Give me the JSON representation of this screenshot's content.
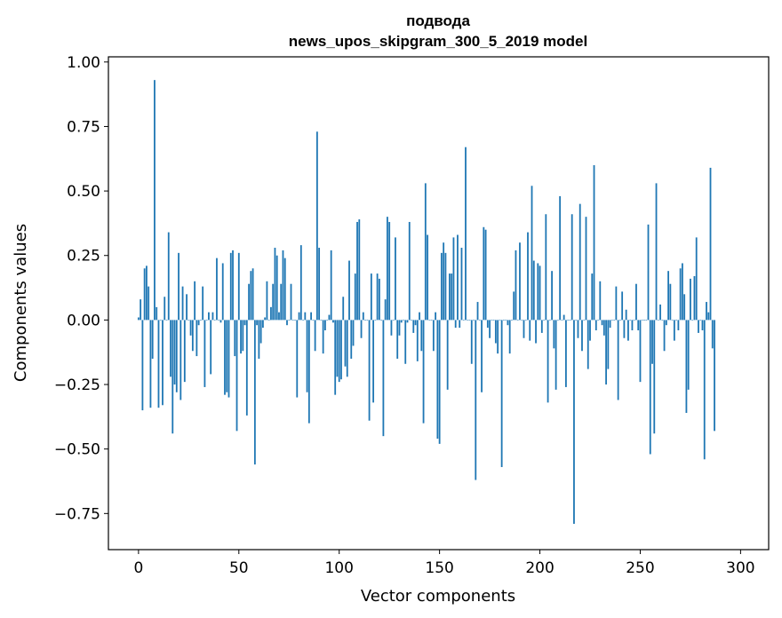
{
  "chart_data": {
    "type": "bar",
    "title": [
      "подвода",
      "news_upos_skipgram_300_5_2019 model"
    ],
    "xlabel": "Vector components",
    "ylabel": "Components values",
    "xlim": [
      -15,
      314
    ],
    "ylim": [
      -0.89,
      1.02
    ],
    "xticks": [
      0,
      50,
      100,
      150,
      200,
      250,
      300
    ],
    "yticks": [
      1.0,
      0.75,
      0.5,
      0.25,
      0.0,
      -0.25,
      -0.5,
      -0.75
    ],
    "ytick_labels": [
      "1.00",
      "0.75",
      "0.50",
      "0.25",
      "0.00",
      "−0.25",
      "−0.50",
      "−0.75"
    ],
    "bar_color": "#1f77b4",
    "values": [
      0.01,
      0.08,
      -0.35,
      0.2,
      0.21,
      0.13,
      -0.34,
      -0.15,
      0.93,
      0.05,
      -0.34,
      0.0,
      -0.33,
      0.09,
      0.0,
      0.34,
      -0.22,
      -0.44,
      -0.25,
      -0.28,
      0.26,
      -0.31,
      0.13,
      -0.24,
      0.1,
      0.0,
      -0.06,
      -0.12,
      0.15,
      -0.14,
      -0.02,
      0.0,
      0.13,
      -0.26,
      0.0,
      0.03,
      -0.21,
      0.03,
      0.0,
      0.24,
      0.0,
      -0.01,
      0.22,
      -0.29,
      -0.28,
      -0.3,
      0.26,
      0.27,
      -0.14,
      -0.43,
      0.26,
      -0.13,
      -0.12,
      -0.02,
      -0.37,
      0.14,
      0.19,
      0.2,
      -0.56,
      -0.02,
      -0.15,
      -0.09,
      -0.03,
      0.01,
      0.15,
      0.0,
      0.05,
      0.14,
      0.28,
      0.25,
      0.03,
      0.14,
      0.27,
      0.24,
      -0.02,
      0.0,
      0.14,
      0.0,
      0.0,
      -0.3,
      0.03,
      0.29,
      0.0,
      0.03,
      -0.28,
      -0.4,
      0.03,
      0.0,
      -0.12,
      0.73,
      0.28,
      0.0,
      -0.13,
      -0.04,
      0.0,
      0.02,
      0.27,
      -0.01,
      -0.29,
      -0.22,
      -0.24,
      -0.23,
      0.09,
      -0.18,
      -0.22,
      0.23,
      -0.15,
      -0.1,
      0.18,
      0.38,
      0.39,
      -0.07,
      0.03,
      0.0,
      0.0,
      -0.39,
      0.18,
      -0.32,
      0.0,
      0.18,
      0.16,
      0.0,
      -0.45,
      0.08,
      0.4,
      0.38,
      -0.06,
      0.0,
      0.32,
      -0.15,
      -0.06,
      -0.01,
      0.0,
      -0.17,
      -0.01,
      0.38,
      0.0,
      -0.05,
      -0.02,
      -0.16,
      0.03,
      -0.12,
      -0.4,
      0.53,
      0.33,
      0.0,
      0.0,
      -0.12,
      0.03,
      -0.46,
      -0.48,
      0.26,
      0.3,
      0.26,
      -0.27,
      0.18,
      0.18,
      0.32,
      -0.03,
      0.33,
      -0.03,
      0.28,
      0.0,
      0.67,
      0.0,
      0.0,
      -0.17,
      0.0,
      -0.62,
      0.07,
      0.0,
      -0.28,
      0.36,
      0.35,
      -0.03,
      -0.07,
      0.0,
      0.0,
      -0.09,
      -0.13,
      0.0,
      -0.57,
      0.0,
      0.0,
      -0.02,
      -0.13,
      0.0,
      0.11,
      0.27,
      0.0,
      0.3,
      0.0,
      -0.07,
      0.0,
      0.34,
      -0.08,
      0.52,
      0.23,
      -0.09,
      0.22,
      0.21,
      -0.05,
      0.0,
      0.41,
      -0.32,
      0.0,
      0.19,
      -0.11,
      -0.27,
      0.0,
      0.48,
      0.0,
      0.02,
      -0.26,
      0.0,
      0.0,
      0.41,
      -0.79,
      0.0,
      -0.07,
      0.45,
      -0.12,
      0.0,
      0.4,
      -0.19,
      -0.08,
      0.18,
      0.6,
      -0.04,
      0.0,
      0.15,
      -0.02,
      -0.06,
      -0.25,
      -0.19,
      -0.03,
      0.0,
      0.0,
      0.13,
      -0.31,
      0.0,
      0.11,
      -0.07,
      0.04,
      -0.08,
      0.0,
      -0.04,
      0.0,
      0.14,
      -0.04,
      -0.24,
      0.0,
      0.0,
      0.0,
      0.37,
      -0.52,
      -0.17,
      -0.44,
      0.53,
      0.0,
      0.06,
      0.0,
      -0.12,
      -0.02,
      0.19,
      0.14,
      0.0,
      -0.08,
      0.0,
      -0.04,
      0.2,
      0.22,
      0.1,
      -0.36,
      -0.27,
      0.16,
      0.0,
      0.17,
      0.32,
      -0.05,
      0.0,
      -0.04,
      -0.54,
      0.07,
      0.03,
      0.59,
      -0.11,
      -0.43
    ]
  }
}
